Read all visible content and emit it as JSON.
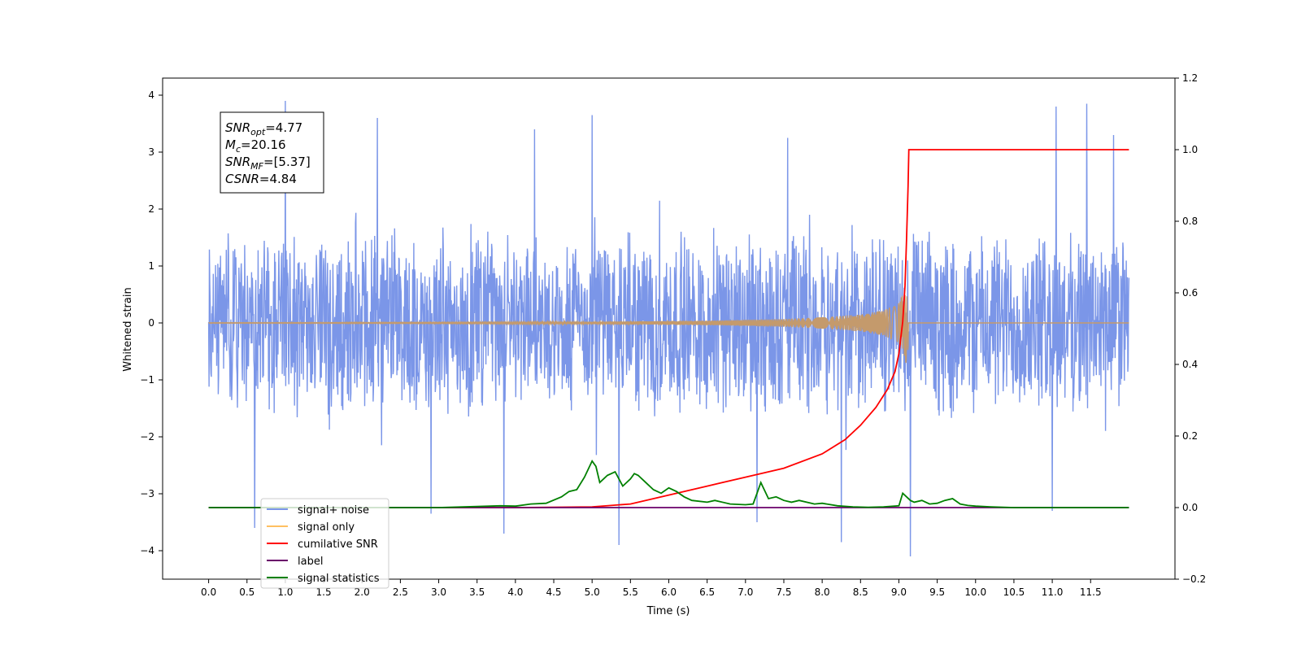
{
  "chart_data": {
    "type": "line",
    "xlabel": "Time (s)",
    "ylabel": "Whitened strain",
    "xlim": [
      -0.6,
      12.6
    ],
    "ylim": [
      -4.5,
      4.3
    ],
    "y2lim": [
      -0.2,
      1.2
    ],
    "xticks": [
      0.0,
      0.5,
      1.0,
      1.5,
      2.0,
      2.5,
      3.0,
      3.5,
      4.0,
      4.5,
      5.0,
      5.5,
      6.0,
      6.5,
      7.0,
      7.5,
      8.0,
      8.5,
      9.0,
      9.5,
      10.0,
      10.5,
      11.0,
      11.5
    ],
    "xtick_labels": [
      "0.0",
      "0.5",
      "1.0",
      "1.5",
      "2.0",
      "2.5",
      "3.0",
      "3.5",
      "4.0",
      "4.5",
      "5.0",
      "5.5",
      "6.0",
      "6.5",
      "7.0",
      "7.5",
      "8.0",
      "8.5",
      "9.0",
      "9.5",
      "10.0",
      "10.5",
      "11.0",
      "11.5"
    ],
    "yticks": [
      -4,
      -3,
      -2,
      -1,
      0,
      1,
      2,
      3,
      4
    ],
    "ytick_labels": [
      "−4",
      "−3",
      "−2",
      "−1",
      "0",
      "1",
      "2",
      "3",
      "4"
    ],
    "y2ticks": [
      -0.2,
      0.0,
      0.2,
      0.4,
      0.6,
      0.8,
      1.0,
      1.2
    ],
    "y2tick_labels": [
      "−0.2",
      "0.0",
      "0.2",
      "0.4",
      "0.6",
      "0.8",
      "1.0",
      "1.2"
    ],
    "grid": false,
    "legend_position": "lower-left",
    "annotation": {
      "lines": [
        {
          "var": "SNR",
          "sub": "opt",
          "value": "=4.77"
        },
        {
          "var": "M",
          "sub": "c",
          "value": "=20.16"
        },
        {
          "var": "SNR",
          "sub": "MF",
          "value": "=[5.37]"
        },
        {
          "var": "CSNR",
          "sub": "",
          "value": "=4.84"
        }
      ]
    },
    "series": [
      {
        "name": "signal+ noise",
        "color": "#7b96e8",
        "axis": "left",
        "kind": "noise",
        "x_range": [
          0.0,
          12.0
        ],
        "typical_amplitude": [
          -1.7,
          1.7
        ],
        "peaks": [
          {
            "x": 1.0,
            "y": 3.9
          },
          {
            "x": 2.2,
            "y": 3.6
          },
          {
            "x": 5.0,
            "y": 3.65
          },
          {
            "x": 11.05,
            "y": 3.8
          },
          {
            "x": 11.45,
            "y": 3.85
          },
          {
            "x": 11.8,
            "y": 3.3
          },
          {
            "x": 7.55,
            "y": 3.25
          },
          {
            "x": 4.25,
            "y": 3.4
          },
          {
            "x": 0.6,
            "y": -3.6
          },
          {
            "x": 3.85,
            "y": -3.7
          },
          {
            "x": 5.35,
            "y": -3.9
          },
          {
            "x": 8.25,
            "y": -3.85
          },
          {
            "x": 9.15,
            "y": -4.1
          },
          {
            "x": 2.9,
            "y": -3.35
          },
          {
            "x": 7.15,
            "y": -3.5
          },
          {
            "x": 11.0,
            "y": -3.3
          }
        ]
      },
      {
        "name": "signal only",
        "color": "#c49a6c",
        "axis": "left",
        "kind": "chirp",
        "x": [
          0.0,
          3.0,
          5.0,
          6.5,
          7.5,
          8.0,
          8.5,
          8.8,
          9.0,
          9.08,
          9.12,
          9.13,
          12.0
        ],
        "envelope": [
          0.005,
          0.01,
          0.02,
          0.04,
          0.07,
          0.1,
          0.15,
          0.22,
          0.35,
          0.6,
          0.95,
          0.0,
          0.0
        ]
      },
      {
        "name": "cumilative SNR",
        "color": "#ff0000",
        "axis": "right",
        "x": [
          0.0,
          4.0,
          5.0,
          5.5,
          6.0,
          6.5,
          7.0,
          7.5,
          8.0,
          8.3,
          8.5,
          8.7,
          8.85,
          8.95,
          9.0,
          9.05,
          9.08,
          9.1,
          9.12,
          9.13,
          12.0
        ],
        "values": [
          0.0,
          0.0,
          0.002,
          0.01,
          0.035,
          0.06,
          0.085,
          0.11,
          0.15,
          0.19,
          0.23,
          0.28,
          0.33,
          0.38,
          0.43,
          0.52,
          0.62,
          0.75,
          0.9,
          1.0,
          1.0
        ]
      },
      {
        "name": "label",
        "color": "#6a006a",
        "axis": "right",
        "x": [
          0.0,
          12.0
        ],
        "values": [
          0.0,
          0.0
        ]
      },
      {
        "name": "signal statistics",
        "color": "#008000",
        "axis": "right",
        "x": [
          0.0,
          3.0,
          3.5,
          3.8,
          4.0,
          4.2,
          4.4,
          4.6,
          4.7,
          4.8,
          4.9,
          5.0,
          5.05,
          5.1,
          5.2,
          5.3,
          5.4,
          5.5,
          5.55,
          5.6,
          5.7,
          5.8,
          5.9,
          6.0,
          6.1,
          6.2,
          6.3,
          6.5,
          6.6,
          6.8,
          7.0,
          7.1,
          7.15,
          7.2,
          7.3,
          7.4,
          7.5,
          7.6,
          7.7,
          7.9,
          8.0,
          8.2,
          8.4,
          8.6,
          8.8,
          9.0,
          9.05,
          9.15,
          9.2,
          9.3,
          9.4,
          9.5,
          9.6,
          9.7,
          9.8,
          9.9,
          10.0,
          10.2,
          10.5,
          12.0
        ],
        "values": [
          0.0,
          0.0,
          0.003,
          0.005,
          0.004,
          0.01,
          0.012,
          0.03,
          0.045,
          0.05,
          0.085,
          0.13,
          0.115,
          0.07,
          0.09,
          0.1,
          0.06,
          0.08,
          0.095,
          0.09,
          0.07,
          0.05,
          0.04,
          0.055,
          0.045,
          0.03,
          0.02,
          0.015,
          0.02,
          0.01,
          0.008,
          0.01,
          0.04,
          0.07,
          0.025,
          0.03,
          0.02,
          0.015,
          0.02,
          0.01,
          0.012,
          0.005,
          0.002,
          0.001,
          0.002,
          0.005,
          0.04,
          0.02,
          0.015,
          0.02,
          0.01,
          0.012,
          0.02,
          0.025,
          0.01,
          0.006,
          0.004,
          0.002,
          0.0,
          0.0
        ]
      }
    ]
  }
}
